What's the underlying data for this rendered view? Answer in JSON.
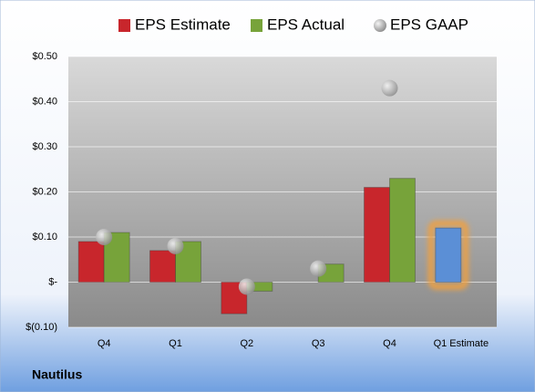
{
  "chart_data": {
    "type": "bar",
    "categories": [
      "Q4",
      "Q1",
      "Q2",
      "Q3",
      "Q4",
      "Q1 Estimate"
    ],
    "series": [
      {
        "name": "EPS Estimate",
        "color": "#c8262c",
        "values": [
          0.09,
          0.07,
          -0.07,
          null,
          0.21,
          0.12
        ],
        "colors": [
          "#c8262c",
          "#c8262c",
          "#c8262c",
          "#c8262c",
          "#c8262c",
          "#5b8fd6"
        ]
      },
      {
        "name": "EPS Actual",
        "color": "#77a33a",
        "values": [
          0.11,
          0.09,
          -0.02,
          0.04,
          0.23,
          null
        ]
      },
      {
        "name": "EPS GAAP",
        "color": "#b0b0b0",
        "type": "scatter",
        "values": [
          0.1,
          0.08,
          -0.01,
          0.03,
          0.43,
          null
        ]
      }
    ],
    "ylim": [
      -0.1,
      0.5
    ],
    "yticks": [
      {
        "value": -0.1,
        "label": "$(0.10)"
      },
      {
        "value": 0,
        "label": "$-"
      },
      {
        "value": 0.1,
        "label": "$0.10"
      },
      {
        "value": 0.2,
        "label": "$0.20"
      },
      {
        "value": 0.3,
        "label": "$0.30"
      },
      {
        "value": 0.4,
        "label": "$0.40"
      },
      {
        "value": 0.5,
        "label": "$0.50"
      }
    ],
    "grid": true,
    "legend": "top",
    "footer": "Nautilus"
  }
}
